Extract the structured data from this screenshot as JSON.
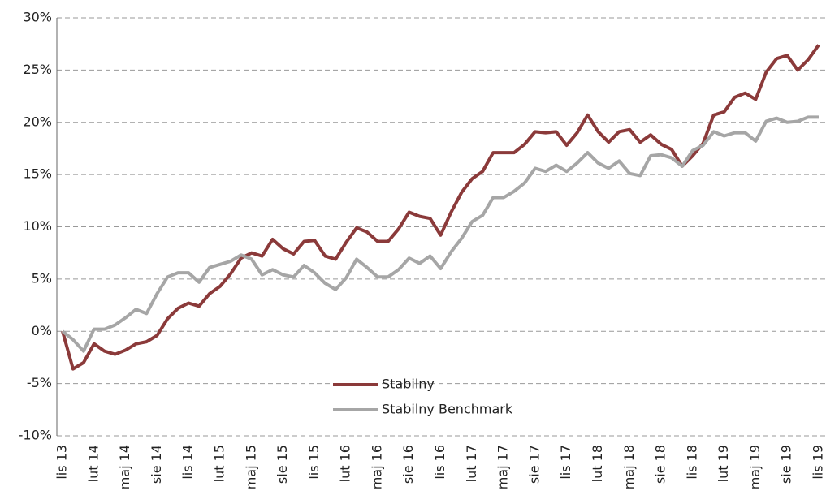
{
  "chart_data": {
    "type": "line",
    "categories": [
      "lis 13",
      null,
      null,
      "lut 14",
      null,
      null,
      "maj 14",
      null,
      null,
      "sie 14",
      null,
      null,
      "lis 14",
      null,
      null,
      "lut 15",
      null,
      null,
      "maj 15",
      null,
      null,
      "sie 15",
      null,
      null,
      "lis 15",
      null,
      null,
      "lut 16",
      null,
      null,
      "maj 16",
      null,
      null,
      "sie 16",
      null,
      null,
      "lis 16",
      null,
      null,
      "lut 17",
      null,
      null,
      "maj 17",
      null,
      null,
      "sie 17",
      null,
      null,
      "lis 17",
      null,
      null,
      "lut 18",
      null,
      null,
      "maj 18",
      null,
      null,
      "sie 18",
      null,
      null,
      "lis 18",
      null,
      null,
      "lut 19",
      null,
      null,
      "maj 19",
      null,
      null,
      "sie 19",
      null,
      null,
      "lis 19"
    ],
    "series": [
      {
        "name": "Stabilny",
        "color": "#8b3a3a",
        "values": [
          0,
          -3.6,
          -3.0,
          -1.2,
          -1.9,
          -2.2,
          -1.8,
          -1.2,
          -1.0,
          -0.4,
          1.2,
          2.2,
          2.7,
          2.4,
          3.6,
          4.3,
          5.5,
          7.0,
          7.5,
          7.2,
          8.8,
          7.9,
          7.4,
          8.6,
          8.7,
          7.2,
          6.9,
          8.5,
          9.9,
          9.5,
          8.6,
          8.6,
          9.8,
          11.4,
          11.0,
          10.8,
          9.2,
          11.4,
          13.3,
          14.6,
          15.3,
          17.1,
          17.1,
          17.1,
          17.9,
          19.1,
          19.0,
          19.1,
          17.8,
          19.0,
          20.7,
          19.1,
          18.1,
          19.1,
          19.3,
          18.1,
          18.8,
          17.9,
          17.4,
          15.8,
          16.8,
          18.0,
          20.7,
          21.0,
          22.4,
          22.8,
          22.2,
          24.8,
          26.1,
          26.4,
          25.0,
          26.0,
          27.4
        ]
      },
      {
        "name": "Stabilny Benchmark",
        "color": "#a6a6a6",
        "values": [
          0,
          -0.8,
          -1.9,
          0.2,
          0.2,
          0.6,
          1.3,
          2.1,
          1.7,
          3.6,
          5.2,
          5.6,
          5.6,
          4.7,
          6.1,
          6.4,
          6.7,
          7.3,
          6.9,
          5.4,
          5.9,
          5.4,
          5.2,
          6.3,
          5.6,
          4.6,
          4.0,
          5.1,
          6.9,
          6.1,
          5.2,
          5.2,
          5.9,
          7.0,
          6.5,
          7.2,
          6.0,
          7.6,
          8.9,
          10.5,
          11.1,
          12.8,
          12.8,
          13.4,
          14.2,
          15.6,
          15.3,
          15.9,
          15.3,
          16.1,
          17.1,
          16.1,
          15.6,
          16.3,
          15.1,
          14.9,
          16.8,
          16.9,
          16.6,
          15.8,
          17.3,
          17.8,
          19.1,
          18.7,
          19.0,
          19.0,
          18.2,
          20.1,
          20.4,
          20.0,
          20.1,
          20.5,
          20.5
        ]
      }
    ],
    "ylim": [
      -10,
      30
    ],
    "yticks": [
      {
        "value": -10,
        "label": "-10%"
      },
      {
        "value": -5,
        "label": "-5%"
      },
      {
        "value": 0,
        "label": "0%"
      },
      {
        "value": 5,
        "label": "5%"
      },
      {
        "value": 10,
        "label": "10%"
      },
      {
        "value": 15,
        "label": "15%"
      },
      {
        "value": 20,
        "label": "20%"
      },
      {
        "value": 25,
        "label": "25%"
      },
      {
        "value": 30,
        "label": "30%"
      }
    ],
    "grid": true
  }
}
